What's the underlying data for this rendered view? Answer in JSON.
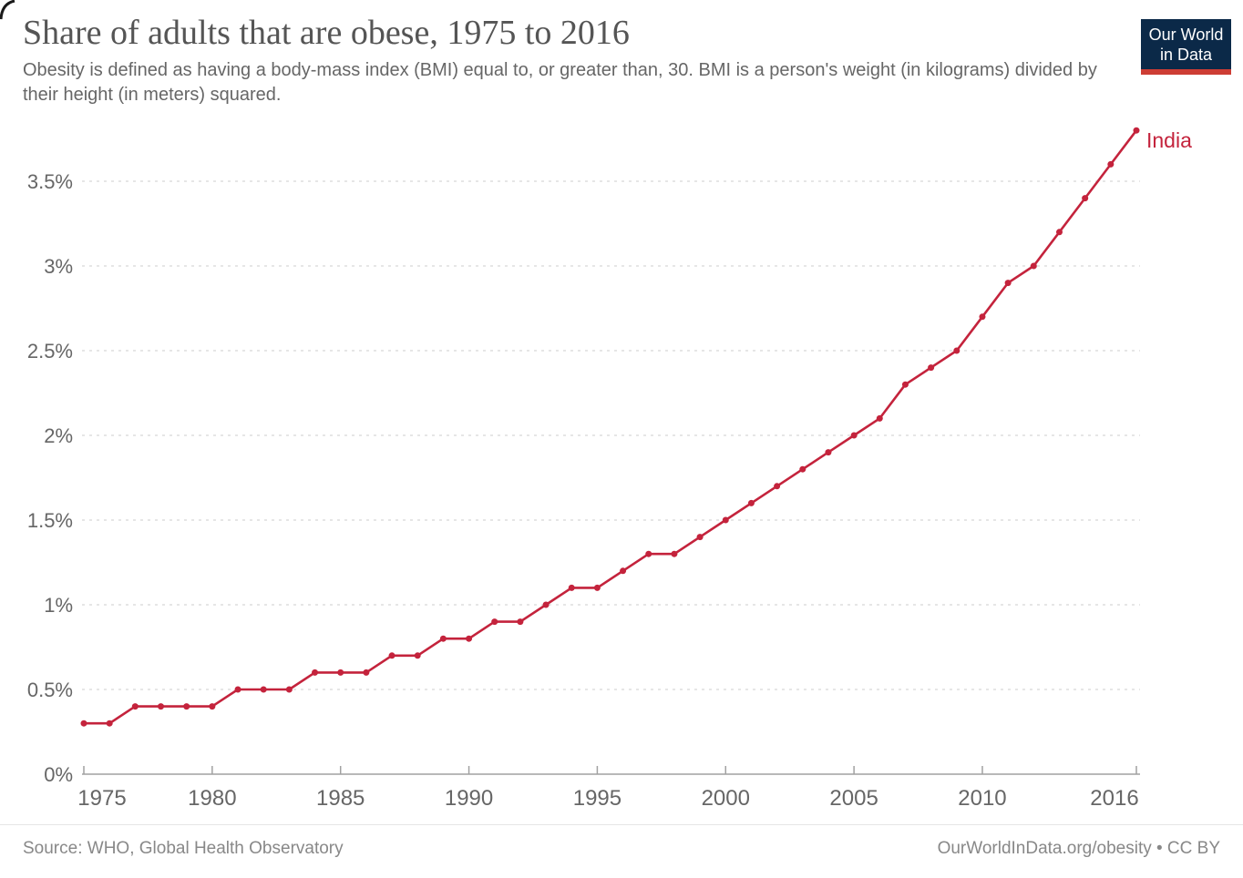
{
  "header": {
    "title": "Share of adults that are obese, 1975 to 2016",
    "subtitle": "Obesity is defined as having a body-mass index (BMI) equal to, or greater than, 30. BMI is a person's weight (in kilograms) divided by their height (in meters) squared.",
    "logo": {
      "line1": "Our World",
      "line2": "in Data"
    }
  },
  "chart_data": {
    "type": "line",
    "title": "Share of adults that are obese, 1975 to 2016",
    "xlabel": "",
    "ylabel": "",
    "xlim": [
      1975,
      2016
    ],
    "ylim": [
      0,
      3.8
    ],
    "grid": "horizontal-dashed",
    "legend_position": "end-of-line",
    "x_ticks": [
      1975,
      1980,
      1985,
      1990,
      1995,
      2000,
      2005,
      2010,
      2016
    ],
    "y_ticks": [
      {
        "value": 0,
        "label": "0%"
      },
      {
        "value": 0.5,
        "label": "0.5%"
      },
      {
        "value": 1,
        "label": "1%"
      },
      {
        "value": 1.5,
        "label": "1.5%"
      },
      {
        "value": 2,
        "label": "2%"
      },
      {
        "value": 2.5,
        "label": "2.5%"
      },
      {
        "value": 3,
        "label": "3%"
      },
      {
        "value": 3.5,
        "label": "3.5%"
      }
    ],
    "series": [
      {
        "name": "India",
        "color": "#c4233c",
        "x": [
          1975,
          1976,
          1977,
          1978,
          1979,
          1980,
          1981,
          1982,
          1983,
          1984,
          1985,
          1986,
          1987,
          1988,
          1989,
          1990,
          1991,
          1992,
          1993,
          1994,
          1995,
          1996,
          1997,
          1998,
          1999,
          2000,
          2001,
          2002,
          2003,
          2004,
          2005,
          2006,
          2007,
          2008,
          2009,
          2010,
          2011,
          2012,
          2013,
          2014,
          2015,
          2016
        ],
        "values": [
          0.3,
          0.3,
          0.4,
          0.4,
          0.4,
          0.4,
          0.5,
          0.5,
          0.5,
          0.6,
          0.6,
          0.6,
          0.7,
          0.7,
          0.8,
          0.8,
          0.9,
          0.9,
          1.0,
          1.1,
          1.1,
          1.2,
          1.3,
          1.3,
          1.4,
          1.5,
          1.6,
          1.7,
          1.8,
          1.9,
          2.0,
          2.1,
          2.3,
          2.4,
          2.5,
          2.7,
          2.9,
          3.0,
          3.2,
          3.4,
          3.6,
          3.8
        ]
      }
    ]
  },
  "footer": {
    "source": "Source: WHO, Global Health Observatory",
    "attribution": "OurWorldInData.org/obesity • CC BY"
  },
  "colors": {
    "title": "#555555",
    "subtitle": "#666666",
    "tick_label": "#666666",
    "gridline": "#dddddd",
    "axis": "#a1a1a1",
    "series_red": "#c4233c",
    "footer_text": "#888888",
    "logo_bg": "#0b2948",
    "logo_bar": "#cd3d34",
    "divider": "#e5e5e5"
  }
}
